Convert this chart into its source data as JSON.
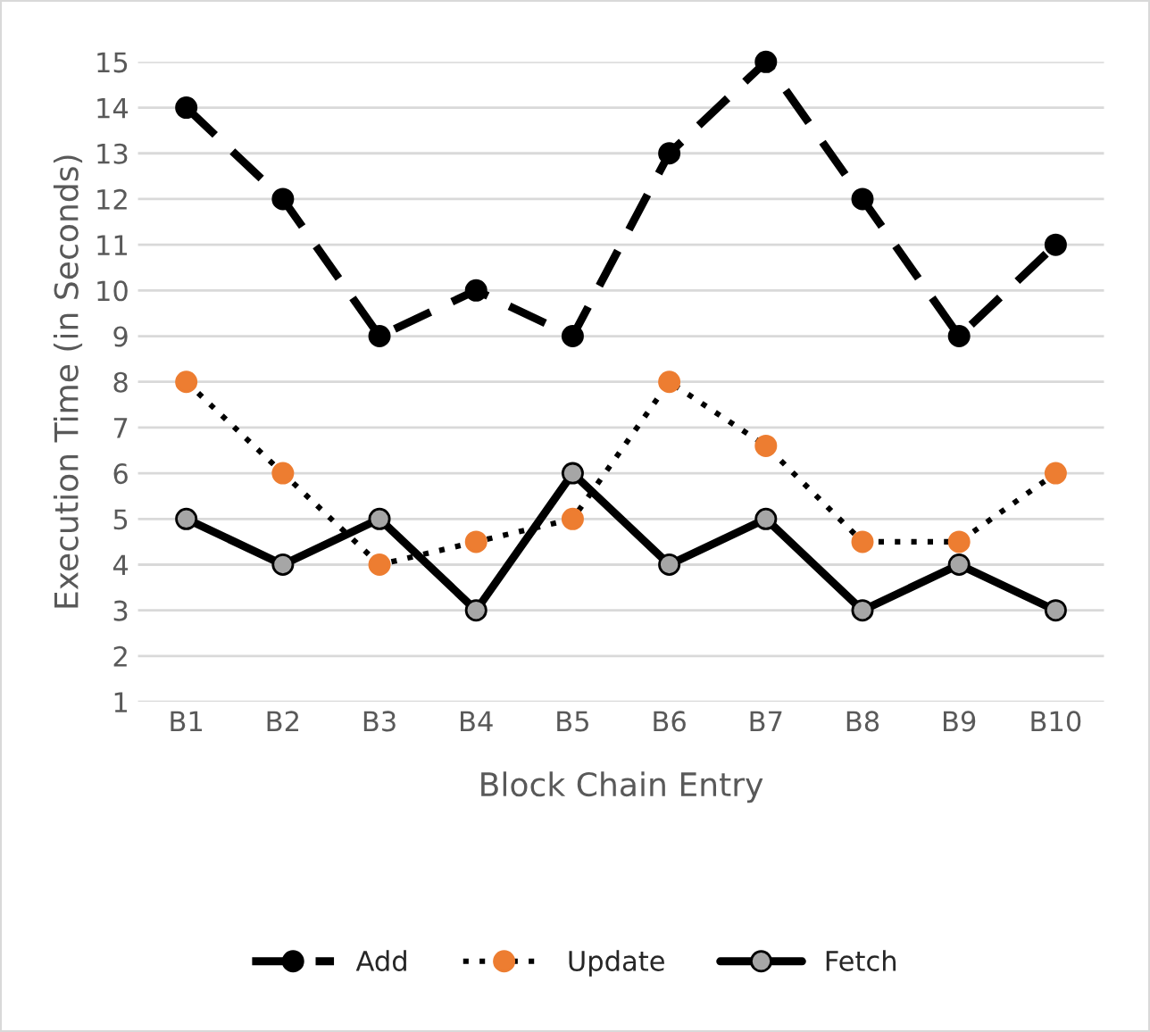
{
  "chart_data": {
    "type": "line",
    "xlabel": "Block Chain Entry",
    "ylabel": "Execution Time (in Seconds)",
    "categories": [
      "B1",
      "B2",
      "B3",
      "B4",
      "B5",
      "B6",
      "B7",
      "B8",
      "B9",
      "B10"
    ],
    "series": [
      {
        "name": "Add",
        "color": "#000000",
        "line_style": "dashed",
        "marker": "circle",
        "values": [
          14,
          12,
          9,
          10,
          9,
          13,
          15,
          12,
          9,
          11
        ]
      },
      {
        "name": "Update",
        "color": "#ed7d31",
        "line_style": "dotted",
        "marker": "circle",
        "values": [
          8,
          6,
          4,
          4.5,
          5,
          8,
          6.6,
          4.5,
          4.5,
          6
        ]
      },
      {
        "name": "Fetch",
        "color": "#a6a6a6",
        "line_style": "solid",
        "marker": "circle",
        "values": [
          5,
          4,
          5,
          3,
          6,
          4,
          5,
          3,
          4,
          3
        ]
      }
    ],
    "ylim": [
      1,
      15
    ],
    "yticks": [
      1,
      2,
      3,
      4,
      5,
      6,
      7,
      8,
      9,
      10,
      11,
      12,
      13,
      14,
      15
    ],
    "grid": "y",
    "legend": "bottom"
  }
}
